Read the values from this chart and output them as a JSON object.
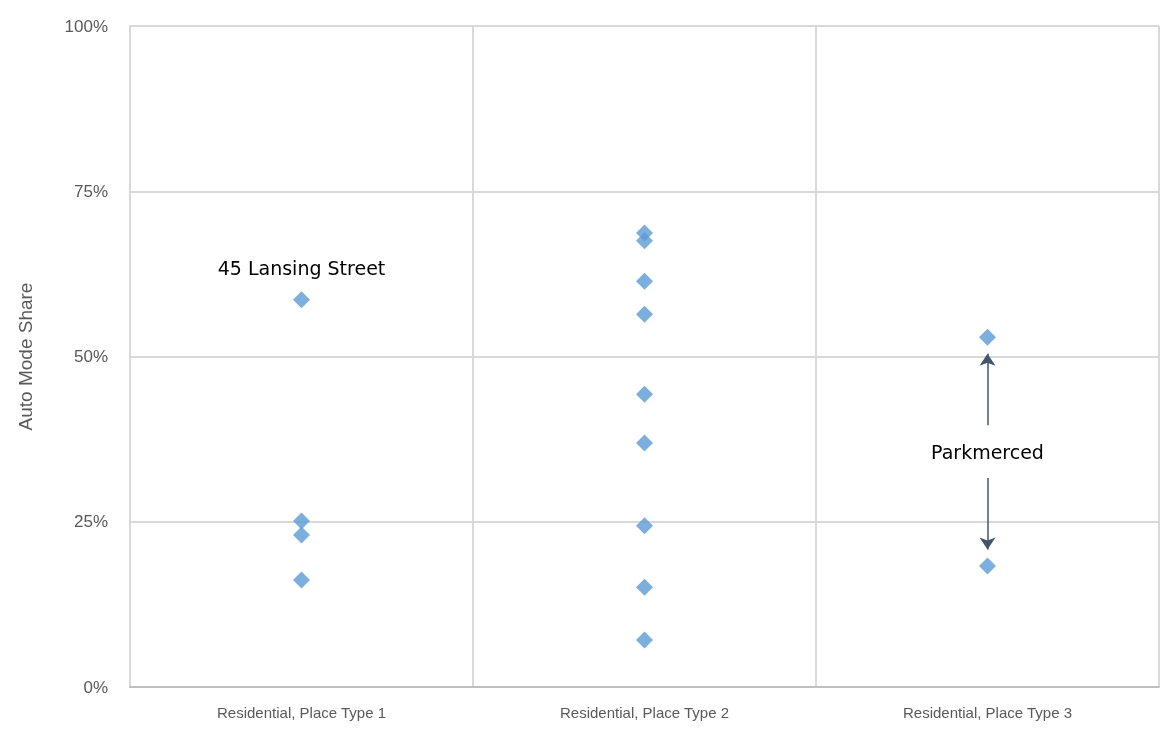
{
  "chart_data": {
    "type": "scatter",
    "ylabel": "Auto Mode Share",
    "categories": [
      "Residential, Place Type 1",
      "Residential, Place Type 2",
      "Residential, Place Type 3"
    ],
    "series": [
      {
        "color": "#5b9bd5",
        "x": [
          "Residential, Place Type 1",
          "Residential, Place Type 1",
          "Residential, Place Type 1",
          "Residential, Place Type 1",
          "Residential, Place Type 2",
          "Residential, Place Type 2",
          "Residential, Place Type 2",
          "Residential, Place Type 2",
          "Residential, Place Type 2",
          "Residential, Place Type 2",
          "Residential, Place Type 2",
          "Residential, Place Type 2",
          "Residential, Place Type 2",
          "Residential, Place Type 3",
          "Residential, Place Type 3"
        ],
        "values": [
          58.6,
          25.1,
          23.0,
          16.2,
          68.7,
          67.5,
          61.4,
          56.4,
          44.3,
          36.9,
          24.4,
          15.1,
          7.1,
          52.9,
          18.3
        ]
      }
    ],
    "ylim": [
      0,
      100
    ],
    "yticks": [
      {
        "value": 0,
        "label": "0%"
      },
      {
        "value": 25,
        "label": "25%"
      },
      {
        "value": 50,
        "label": "50%"
      },
      {
        "value": 75,
        "label": "75%"
      },
      {
        "value": 100,
        "label": "100%"
      }
    ],
    "grid": true,
    "marker": "diamond",
    "annotations": [
      {
        "text": "45 Lansing Street",
        "x": "Residential, Place Type 1",
        "y": 58.6
      },
      "Parkmerced"
    ]
  }
}
